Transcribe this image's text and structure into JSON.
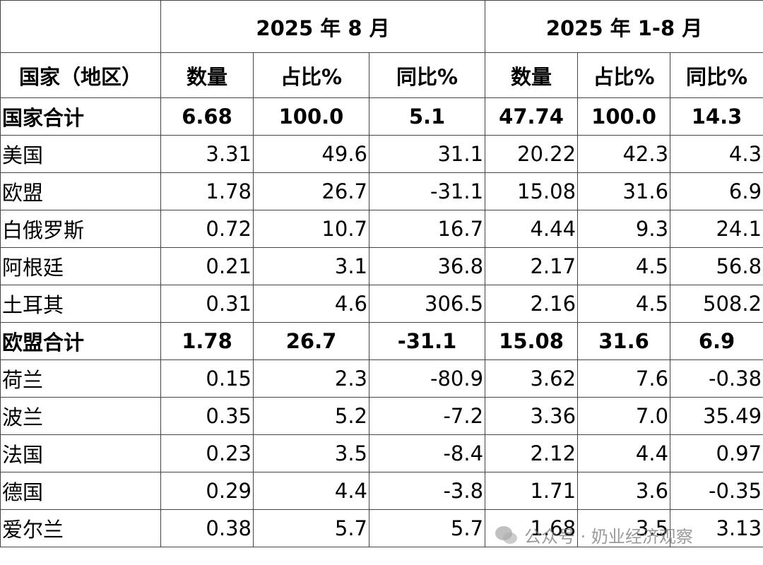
{
  "table": {
    "header_rows": [
      [
        "2025 年 8 月",
        "2025 年 1-8 月"
      ],
      [
        "国家（地区）",
        "数量",
        "占比%",
        "同比%",
        "数量",
        "占比%",
        "同比%"
      ]
    ],
    "rows": [
      [
        "国家合计",
        "6.68",
        "100.0",
        "5.1",
        "47.74",
        "100.0",
        "14.3"
      ],
      [
        "美国",
        "3.31",
        "49.6",
        "31.1",
        "20.22",
        "42.3",
        "4.3"
      ],
      [
        "欧盟",
        "1.78",
        "26.7",
        "-31.1",
        "15.08",
        "31.6",
        "6.9"
      ],
      [
        "白俄罗斯",
        "0.72",
        "10.7",
        "16.7",
        "4.44",
        "9.3",
        "24.1"
      ],
      [
        "阿根廷",
        "0.21",
        "3.1",
        "36.8",
        "2.17",
        "4.5",
        "56.8"
      ],
      [
        "土耳其",
        "0.31",
        "4.6",
        "306.5",
        "2.16",
        "4.5",
        "508.2"
      ],
      [
        "欧盟合计",
        "1.78",
        "26.7",
        "-31.1",
        "15.08",
        "31.6",
        "6.9"
      ],
      [
        "荷兰",
        "0.15",
        "2.3",
        "-80.9",
        "3.62",
        "7.6",
        "-0.38"
      ],
      [
        "波兰",
        "0.35",
        "5.2",
        "-7.2",
        "3.36",
        "7.0",
        "35.49"
      ],
      [
        "法国",
        "0.23",
        "3.5",
        "-8.4",
        "2.12",
        "4.4",
        "0.97"
      ],
      [
        "德国",
        "0.29",
        "4.4",
        "-3.8",
        "1.71",
        "3.6",
        "-0.35"
      ],
      [
        "爱尔兰",
        "0.38",
        "5.7",
        "5.7",
        "1.68",
        "3.5",
        "3.13"
      ]
    ]
  },
  "watermark": "公众号 · 奶业经济观察"
}
